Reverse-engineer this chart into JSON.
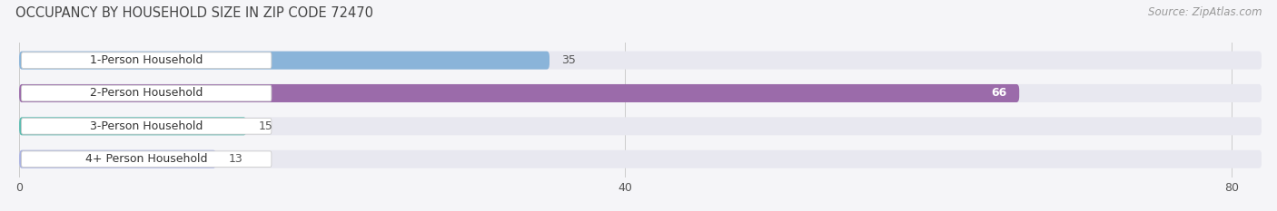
{
  "title": "OCCUPANCY BY HOUSEHOLD SIZE IN ZIP CODE 72470",
  "source": "Source: ZipAtlas.com",
  "categories": [
    "1-Person Household",
    "2-Person Household",
    "3-Person Household",
    "4+ Person Household"
  ],
  "values": [
    35,
    66,
    15,
    13
  ],
  "bar_colors": [
    "#8ab4d9",
    "#9b6baa",
    "#5bbcb0",
    "#aab2e0"
  ],
  "bar_bg_color": "#e8e8f0",
  "label_bg_color": "#ffffff",
  "label_border_color": "#cccccc",
  "xlim": [
    0,
    82
  ],
  "xticks": [
    0,
    40,
    80
  ],
  "background_color": "#f5f5f8",
  "title_fontsize": 10.5,
  "source_fontsize": 8.5,
  "tick_fontsize": 9,
  "bar_label_fontsize": 9,
  "category_fontsize": 9,
  "value_label_color_inside": "#ffffff",
  "value_label_color_outside": "#555555",
  "grid_color": "#cccccc"
}
